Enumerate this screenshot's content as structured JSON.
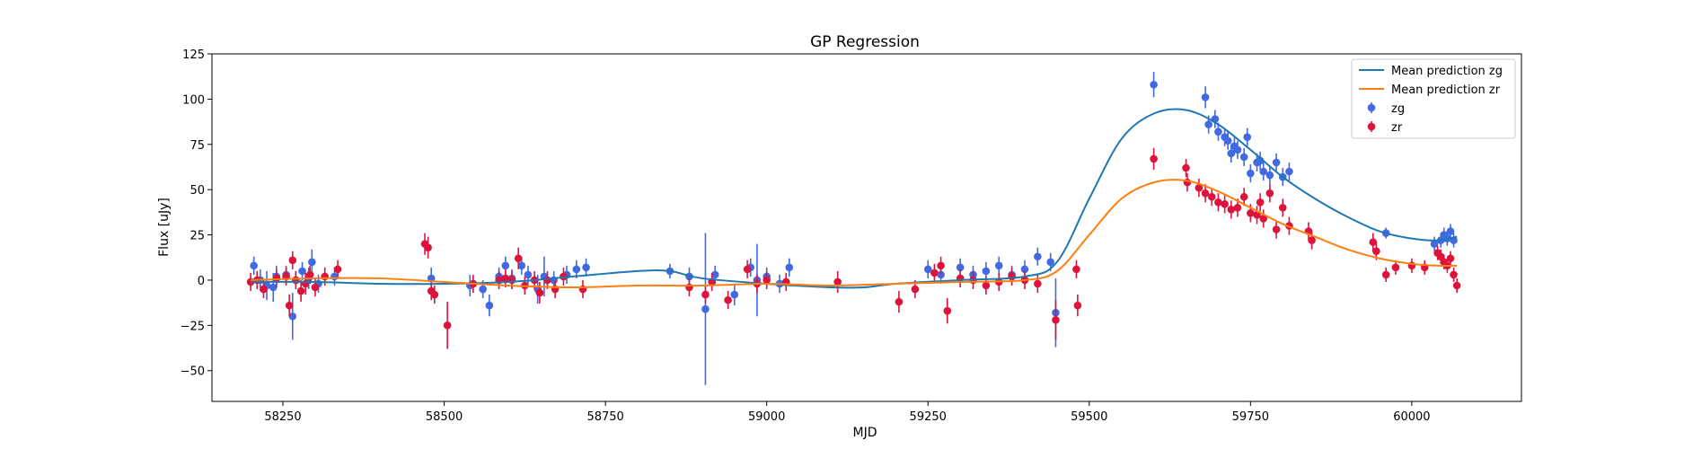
{
  "chart_data": {
    "type": "scatter",
    "title": "GP Regression",
    "xlabel": "MJD",
    "ylabel": "Flux [uJy]",
    "xlim": [
      58140,
      60170
    ],
    "ylim": [
      -67,
      125
    ],
    "x_ticks": [
      58250,
      58500,
      58750,
      59000,
      59250,
      59500,
      59750,
      60000
    ],
    "y_ticks": [
      -50,
      -25,
      0,
      25,
      50,
      75,
      100,
      125
    ],
    "grid": false,
    "legend_position": "top-right",
    "legend": [
      {
        "label": "Mean prediction zg",
        "kind": "line",
        "color": "#1f77b4"
      },
      {
        "label": "Mean prediction zr",
        "kind": "line",
        "color": "#ff7f0e"
      },
      {
        "label": "zg",
        "kind": "errorbar",
        "color": "#4169e1"
      },
      {
        "label": "zr",
        "kind": "errorbar",
        "color": "#dc143c"
      }
    ],
    "series": [
      {
        "name": "Mean prediction zg",
        "kind": "line",
        "color": "#1f77b4",
        "x": [
          58200,
          58300,
          58400,
          58500,
          58600,
          58700,
          58800,
          58850,
          58900,
          59000,
          59100,
          59150,
          59200,
          59300,
          59400,
          59450,
          59500,
          59550,
          59600,
          59650,
          59700,
          59750,
          59800,
          59850,
          59900,
          59950,
          60000,
          60040,
          60070
        ],
        "y": [
          -1,
          -1,
          -2,
          -2,
          -1,
          2,
          5,
          5,
          1,
          -2,
          -4,
          -4,
          -2,
          0,
          2,
          10,
          45,
          78,
          92,
          94,
          86,
          72,
          57,
          45,
          35,
          27,
          23,
          22,
          24
        ]
      },
      {
        "name": "Mean prediction zr",
        "kind": "line",
        "color": "#ff7f0e",
        "x": [
          58200,
          58300,
          58400,
          58500,
          58600,
          58700,
          58800,
          58900,
          59000,
          59100,
          59200,
          59300,
          59400,
          59450,
          59500,
          59550,
          59600,
          59650,
          59700,
          59750,
          59800,
          59850,
          59900,
          59950,
          60000,
          60040,
          60070
        ],
        "y": [
          0,
          1,
          1,
          -1,
          -3,
          -4,
          -3,
          -3,
          -2,
          -3,
          -2,
          -1,
          0,
          5,
          25,
          45,
          54,
          55,
          49,
          40,
          31,
          24,
          17,
          12,
          9,
          8,
          8
        ]
      },
      {
        "name": "zg",
        "kind": "errorbar",
        "color": "#4169e1",
        "x": [
          58205,
          58215,
          58225,
          58235,
          58240,
          58255,
          58265,
          58270,
          58280,
          58290,
          58295,
          58305,
          58330,
          58480,
          58540,
          58560,
          58570,
          58585,
          58595,
          58605,
          58620,
          58630,
          58645,
          58655,
          58670,
          58690,
          58705,
          58720,
          58850,
          58880,
          58905,
          58920,
          58950,
          58975,
          58985,
          59000,
          59020,
          59035,
          59250,
          59270,
          59300,
          59320,
          59340,
          59360,
          59380,
          59400,
          59420,
          59440,
          59448,
          59600,
          59680,
          59685,
          59695,
          59700,
          59710,
          59715,
          59720,
          59725,
          59730,
          59740,
          59745,
          59750,
          59760,
          59765,
          59770,
          59780,
          59790,
          59800,
          59810,
          59960,
          60035,
          60045,
          60050,
          60055,
          60060,
          60065
        ],
        "y": [
          8,
          0,
          -3,
          -4,
          2,
          3,
          -20,
          0,
          5,
          1,
          10,
          -2,
          2,
          1,
          -3,
          -5,
          -14,
          2,
          8,
          1,
          8,
          3,
          -5,
          2,
          0,
          3,
          6,
          7,
          5,
          2,
          -16,
          3,
          -8,
          7,
          0,
          2,
          -2,
          7,
          6,
          3,
          7,
          3,
          5,
          8,
          3,
          6,
          13,
          10,
          -18,
          108,
          101,
          86,
          89,
          82,
          79,
          77,
          70,
          74,
          72,
          68,
          79,
          59,
          65,
          66,
          60,
          58,
          65,
          57,
          60,
          26,
          20,
          22,
          25,
          23,
          27,
          22
        ],
        "err": [
          5,
          6,
          8,
          8,
          6,
          5,
          13,
          5,
          5,
          6,
          7,
          5,
          5,
          6,
          6,
          5,
          6,
          5,
          5,
          5,
          5,
          5,
          8,
          11,
          5,
          5,
          5,
          5,
          4,
          5,
          42,
          5,
          6,
          5,
          20,
          5,
          5,
          5,
          5,
          5,
          5,
          5,
          5,
          5,
          5,
          5,
          5,
          5,
          19,
          7,
          6,
          5,
          5,
          5,
          5,
          5,
          5,
          5,
          5,
          5,
          5,
          5,
          5,
          5,
          5,
          5,
          5,
          5,
          5,
          3,
          4,
          4,
          4,
          4,
          4,
          4
        ]
      },
      {
        "name": "zr",
        "kind": "errorbar",
        "color": "#dc143c",
        "x": [
          58200,
          58210,
          58220,
          58240,
          58255,
          58260,
          58265,
          58270,
          58278,
          58285,
          58292,
          58300,
          58315,
          58335,
          58470,
          58475,
          58480,
          58485,
          58505,
          58545,
          58585,
          58595,
          58605,
          58615,
          58625,
          58640,
          58648,
          58660,
          58672,
          58685,
          58715,
          58880,
          58905,
          58915,
          58940,
          58970,
          58985,
          59000,
          59030,
          59110,
          59205,
          59230,
          59260,
          59270,
          59280,
          59300,
          59320,
          59340,
          59360,
          59380,
          59400,
          59420,
          59448,
          59480,
          59482,
          59600,
          59650,
          59652,
          59670,
          59680,
          59690,
          59700,
          59710,
          59720,
          59730,
          59740,
          59750,
          59760,
          59765,
          59770,
          59780,
          59790,
          59800,
          59810,
          59840,
          59845,
          59940,
          59945,
          59960,
          59975,
          60000,
          60020,
          60040,
          60045,
          60050,
          60055,
          60060,
          60065,
          60070
        ],
        "y": [
          -1,
          0,
          -5,
          1,
          2,
          -14,
          11,
          0,
          -6,
          -2,
          3,
          -4,
          2,
          6,
          20,
          18,
          -6,
          -8,
          -25,
          -2,
          0,
          1,
          0,
          12,
          -3,
          0,
          -7,
          0,
          -5,
          2,
          -5,
          -4,
          -8,
          -1,
          -11,
          6,
          -2,
          0,
          -1,
          -1,
          -12,
          -5,
          4,
          8,
          -17,
          1,
          0,
          -3,
          -1,
          2,
          0,
          -2,
          -22,
          6,
          -14,
          67,
          62,
          54,
          51,
          48,
          46,
          43,
          42,
          39,
          40,
          46,
          37,
          36,
          43,
          34,
          48,
          28,
          40,
          30,
          27,
          22,
          21,
          16,
          3,
          7,
          8,
          7,
          15,
          13,
          10,
          8,
          12,
          3,
          -3
        ],
        "err": [
          5,
          5,
          5,
          5,
          5,
          6,
          5,
          5,
          6,
          6,
          5,
          5,
          5,
          5,
          6,
          6,
          5,
          5,
          13,
          5,
          5,
          5,
          5,
          6,
          5,
          5,
          6,
          5,
          5,
          5,
          5,
          5,
          5,
          5,
          5,
          5,
          5,
          5,
          5,
          6,
          6,
          5,
          5,
          5,
          7,
          5,
          5,
          5,
          5,
          5,
          5,
          5,
          11,
          5,
          6,
          6,
          5,
          5,
          5,
          5,
          5,
          5,
          5,
          5,
          5,
          5,
          5,
          5,
          5,
          5,
          5,
          5,
          5,
          5,
          5,
          5,
          5,
          5,
          4,
          4,
          4,
          4,
          4,
          4,
          4,
          4,
          4,
          4,
          4
        ]
      }
    ]
  }
}
